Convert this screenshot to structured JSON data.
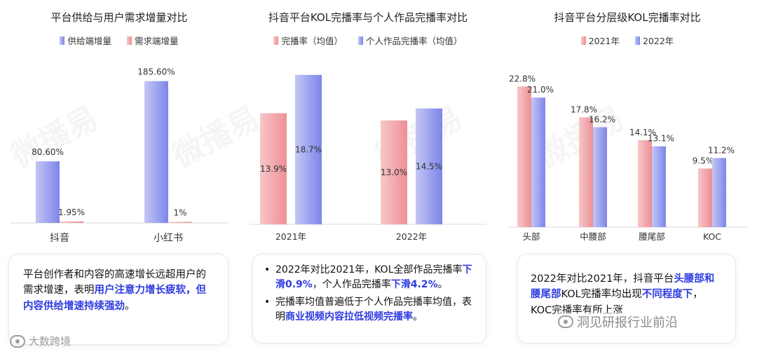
{
  "chart_data": [
    {
      "type": "bar",
      "title": "平台供给与用户需求增量对比",
      "categories": [
        "抖音",
        "小红书"
      ],
      "series": [
        {
          "name": "供给端增量",
          "values": [
            80.6,
            185.6
          ],
          "labels": [
            "80.60%",
            "185.60%"
          ],
          "color": "#7d85ea"
        },
        {
          "name": "需求端增量",
          "values": [
            1.95,
            1
          ],
          "labels": [
            "1.95%",
            "1%"
          ],
          "color": "#ee8f95"
        }
      ],
      "ylim": [
        0,
        200
      ],
      "legend": "top-center"
    },
    {
      "type": "bar",
      "title": "抖音平台KOL完播率与个人作品完播率对比",
      "categories": [
        "2021年",
        "2022年"
      ],
      "series": [
        {
          "name": "完播率（均值）",
          "values": [
            13.9,
            13.0
          ],
          "labels": [
            "13.9%",
            "13.0%"
          ],
          "color": "#ee8f95"
        },
        {
          "name": "个人作品完播率（均值）",
          "values": [
            18.7,
            14.5
          ],
          "labels": [
            "18.7%",
            "14.5%"
          ],
          "color": "#7d85ea"
        }
      ],
      "ylim": [
        0,
        20
      ],
      "legend": "top-center"
    },
    {
      "type": "bar",
      "title": "抖音平台分层级KOL完播率对比",
      "categories": [
        "头部",
        "中腰部",
        "腰尾部",
        "KOC"
      ],
      "series": [
        {
          "name": "2021年",
          "values": [
            22.8,
            17.8,
            14.1,
            9.5
          ],
          "labels": [
            "22.8%",
            "17.8%",
            "14.1%",
            "9.5%"
          ],
          "color": "#ee8f95"
        },
        {
          "name": "2022年",
          "values": [
            21.0,
            16.2,
            13.1,
            11.2
          ],
          "labels": [
            "21.0%",
            "16.2%",
            "13.1%",
            "11.2%"
          ],
          "color": "#7d85ea"
        }
      ],
      "ylim": [
        0,
        25
      ],
      "legend": "top-center"
    }
  ],
  "textbox1": {
    "part1": "平台创作者和内容的高速增长远超用户的需求增速，表明",
    "highlight": "用户注意力增长疲软，但内容供给增速持续强劲",
    "part2": "。"
  },
  "textbox2": {
    "bullet1_a": "2022年对比2021年，KOL全部作品完播率",
    "bullet1_hl1": "下滑0.9%",
    "bullet1_b": "，个人作品完播率",
    "bullet1_hl2": "下滑4.2%",
    "bullet1_c": "。",
    "bullet2_a": "完播率均值普遍低于个人作品完播率均值，表明",
    "bullet2_hl": "商业视频内容拉低视频完播率",
    "bullet2_b": "。"
  },
  "textbox3": {
    "part1": "2022年对比2021年，抖音平台",
    "hl1": "头腰部和腰尾部",
    "part2": "KOL完播率均出现",
    "hl2": "不同程度下",
    "part3": "，KOC完播率有所上涨"
  },
  "watermarks": {
    "left": "大数跨境",
    "right": "洞见研报行业前沿",
    "diagonal": "微播易"
  }
}
